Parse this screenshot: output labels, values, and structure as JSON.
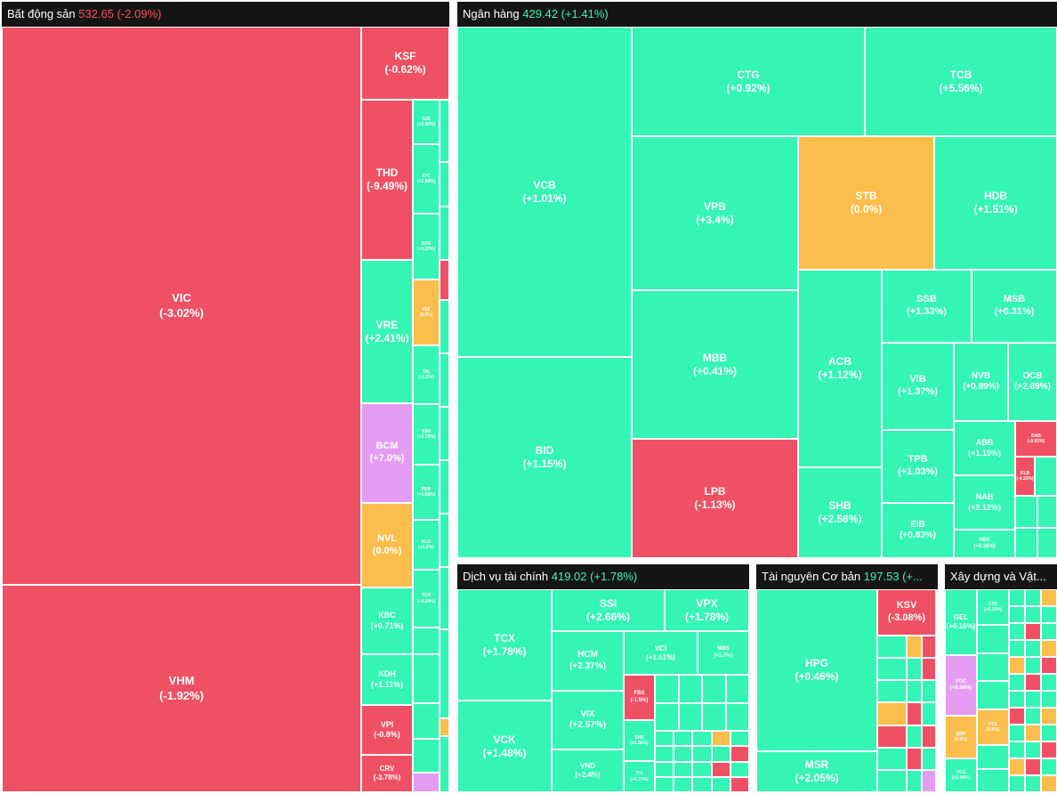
{
  "colors": {
    "up": "#35f5b4",
    "down": "#f05064",
    "flat": "#fbbd4b",
    "ceiling": "#e39cf2",
    "header_bg": "#151515"
  },
  "chart_data": {
    "type": "heatmap",
    "sectors": [
      {
        "name": "Bất động sản",
        "index": "532.65",
        "change": "(-2.09%)",
        "stocks": [
          {
            "s": "VIC",
            "c": "(-3.02%)"
          },
          {
            "s": "VHM",
            "c": "(-1.92%)"
          },
          {
            "s": "KSF",
            "c": "(-0.62%)"
          },
          {
            "s": "THD",
            "c": "(-9.49%)"
          },
          {
            "s": "VRE",
            "c": "(+2.41%)"
          },
          {
            "s": "BCM",
            "c": "(+7.0%)"
          },
          {
            "s": "NVL",
            "c": "(0.0%)"
          },
          {
            "s": "KBC",
            "c": "(+0.71%)"
          },
          {
            "s": "KDH",
            "c": "(+1.11%)"
          },
          {
            "s": "VPI",
            "c": "(-0.8%)"
          },
          {
            "s": "CRV",
            "c": "(-3.78%)"
          },
          {
            "s": "SJS",
            "c": "(+0.42%)"
          },
          {
            "s": "IDC",
            "c": "(+2.08%)"
          },
          {
            "s": "DXG",
            "c": "(+3.27%)"
          },
          {
            "s": "VEF",
            "c": "(0.0%)"
          },
          {
            "s": "TAL",
            "c": "(+1.2%)"
          },
          {
            "s": "SSH",
            "c": "(+0.79%)"
          },
          {
            "s": "PDR",
            "c": "(+1.58%)"
          },
          {
            "s": "KLG",
            "c": "(+1.6%)"
          },
          {
            "s": "TCH",
            "c": "(+4.24%)"
          }
        ]
      },
      {
        "name": "Ngân hàng",
        "index": "429.42",
        "change": "(+1.41%)",
        "stocks": [
          {
            "s": "VCB",
            "c": "(+1.01%)"
          },
          {
            "s": "BID",
            "c": "(+1.15%)"
          },
          {
            "s": "CTG",
            "c": "(+0.92%)"
          },
          {
            "s": "TCB",
            "c": "(+5.56%)"
          },
          {
            "s": "VPB",
            "c": "(+3.4%)"
          },
          {
            "s": "STB",
            "c": "(0.0%)"
          },
          {
            "s": "HDB",
            "c": "(+1.51%)"
          },
          {
            "s": "MBB",
            "c": "(+0.41%)"
          },
          {
            "s": "LPB",
            "c": "(-1.13%)"
          },
          {
            "s": "ACB",
            "c": "(+1.12%)"
          },
          {
            "s": "SHB",
            "c": "(+2.56%)"
          },
          {
            "s": "SSB",
            "c": "(+1.33%)"
          },
          {
            "s": "MSB",
            "c": "(+0.31%)"
          },
          {
            "s": "VIB",
            "c": "(+1.37%)"
          },
          {
            "s": "NVB",
            "c": "(+0.89%)"
          },
          {
            "s": "OCB",
            "c": "(+2.89%)"
          },
          {
            "s": "TPB",
            "c": "(+1.03%)"
          },
          {
            "s": "EIB",
            "c": "(+0.83%)"
          },
          {
            "s": "ABB",
            "c": "(+1.19%)"
          },
          {
            "s": "NAB",
            "c": "(+2.12%)"
          },
          {
            "s": "BAB",
            "c": "(-0.93%)"
          },
          {
            "s": "KLB",
            "c": "(-4.33%)"
          },
          {
            "s": "VBB",
            "c": "(+0.38%)"
          }
        ]
      },
      {
        "name": "Dịch vụ tài chính",
        "index": "419.02",
        "change": "(+1.78%)",
        "stocks": [
          {
            "s": "TCX",
            "c": "(+1.78%)"
          },
          {
            "s": "VCK",
            "c": "(+1.48%)"
          },
          {
            "s": "SSI",
            "c": "(+2.66%)"
          },
          {
            "s": "VPX",
            "c": "(+1.78%)"
          },
          {
            "s": "HCM",
            "c": "(+2.37%)"
          },
          {
            "s": "VCI",
            "c": "(+1.61%)"
          },
          {
            "s": "MBS",
            "c": "(+2.7%)"
          },
          {
            "s": "VIX",
            "c": "(+2.57%)"
          },
          {
            "s": "FBS",
            "c": "(-1.5%)"
          },
          {
            "s": "VND",
            "c": "(+2.4%)"
          },
          {
            "s": "SHS",
            "c": "(+2.56%)"
          },
          {
            "s": "TVI",
            "c": "(+0.77%)"
          }
        ]
      },
      {
        "name": "Tài nguyên Cơ bản",
        "index": "197.53",
        "change": "(+...",
        "stocks": [
          {
            "s": "HPG",
            "c": "(+0.46%)"
          },
          {
            "s": "MSR",
            "c": "(+2.05%)"
          },
          {
            "s": "KSV",
            "c": "(-3.08%)"
          }
        ]
      },
      {
        "name": "Xây dựng và Vật...",
        "index": "",
        "change": "",
        "stocks": [
          {
            "s": "GEL",
            "c": "(+0.16%)"
          },
          {
            "s": "VGC",
            "c": "(+6.88%)"
          },
          {
            "s": "BMP",
            "c": "(0.0%)"
          },
          {
            "s": "VCG",
            "c": "(+1.96%)"
          },
          {
            "s": "PC1",
            "c": "(0.0%)"
          },
          {
            "s": "CTD",
            "c": "(+0.10%)"
          }
        ]
      }
    ]
  }
}
